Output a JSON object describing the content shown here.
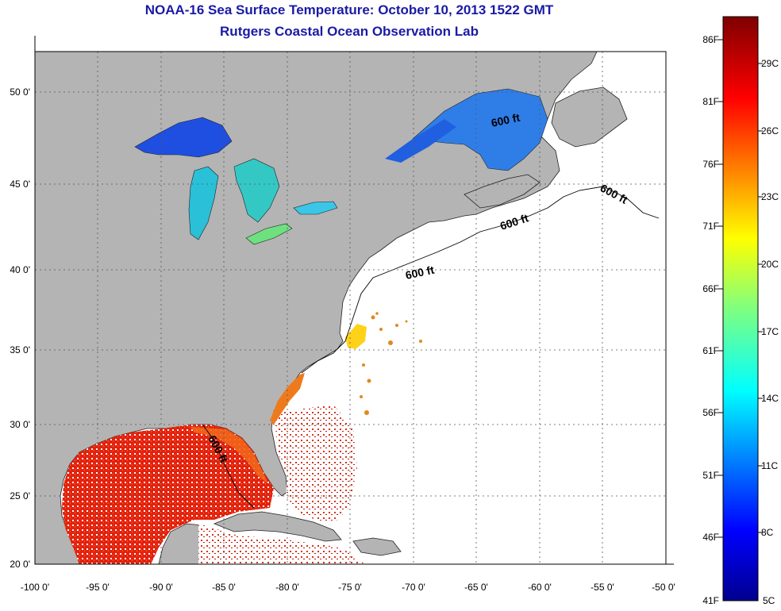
{
  "title": "NOAA-16 Sea Surface Temperature:  October 10, 2013 1522 GMT",
  "subtitle": "Rutgers Coastal Ocean Observation Lab",
  "axes": {
    "lon_labels": [
      "-100 0'",
      "-95 0'",
      "-90 0'",
      "-85 0'",
      "-80 0'",
      "-75 0'",
      "-70 0'",
      "-65 0'",
      "-60 0'",
      "-55 0'",
      "-50 0'"
    ],
    "lat_labels": [
      "20 0'",
      "25 0'",
      "30 0'",
      "35 0'",
      "40 0'",
      "45 0'",
      "50 0'"
    ],
    "lon_range": [
      -100,
      -50
    ],
    "lat_range": [
      20,
      52.5
    ]
  },
  "contour_labels": [
    "600 ft",
    "600 ft",
    "600 ft",
    "600 ft",
    "600 ft"
  ],
  "colorbar": {
    "fahrenheit_labels": [
      "86F",
      "81F",
      "76F",
      "71F",
      "66F",
      "61F",
      "56F",
      "51F",
      "46F",
      "41F"
    ],
    "celsius_labels": [
      "29C",
      "26C",
      "23C",
      "20C",
      "17C",
      "14C",
      "11C",
      "8C",
      "5C"
    ]
  },
  "colors": {
    "land": "#b4b4b4",
    "ocean_nodata": "#ffffff",
    "title": "#1a1aa6"
  }
}
